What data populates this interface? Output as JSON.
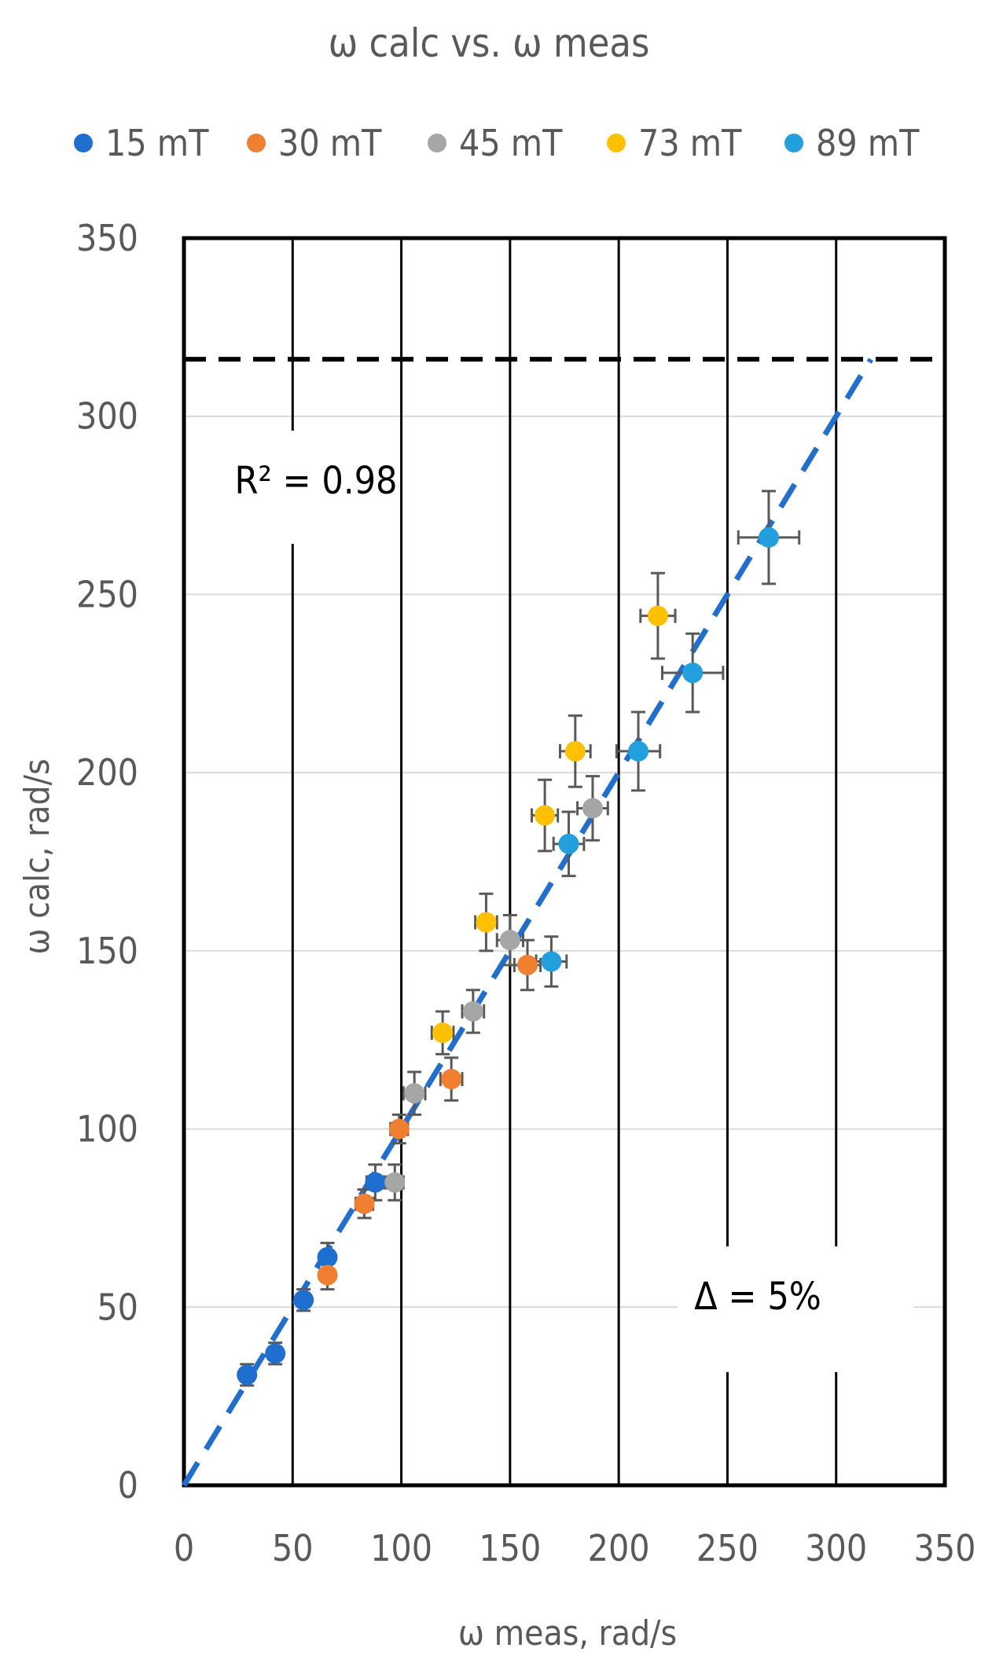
{
  "chart_data": {
    "type": "scatter",
    "title": "ω calc vs. ω meas",
    "xlabel": "ω meas, rad/s",
    "ylabel": "ω calc, rad/s",
    "xlim": [
      0,
      350
    ],
    "ylim": [
      0,
      350
    ],
    "xticks": [
      "0",
      "50",
      "100",
      "150",
      "200",
      "250",
      "300",
      "350"
    ],
    "yticks": [
      "0",
      "50",
      "100",
      "150",
      "200",
      "250",
      "300",
      "350"
    ],
    "legend_position": "top",
    "series": [
      {
        "name": "15 mT",
        "color": "#1f6fd1",
        "points": [
          [
            29,
            31,
            2,
            3
          ],
          [
            42,
            37,
            2,
            3
          ],
          [
            55,
            52,
            3,
            3
          ],
          [
            66,
            64,
            3,
            4
          ],
          [
            88,
            85,
            4,
            5
          ]
        ]
      },
      {
        "name": "30 mT",
        "color": "#f07f30",
        "points": [
          [
            66,
            59,
            3,
            4
          ],
          [
            83,
            79,
            4,
            4
          ],
          [
            99,
            100,
            4,
            4
          ],
          [
            123,
            114,
            5,
            6
          ],
          [
            158,
            146,
            6,
            7
          ]
        ]
      },
      {
        "name": "45 mT",
        "color": "#a6a6a6",
        "points": [
          [
            97,
            85,
            4,
            5
          ],
          [
            106,
            110,
            5,
            6
          ],
          [
            133,
            133,
            5,
            6
          ],
          [
            150,
            153,
            6,
            7
          ],
          [
            188,
            190,
            7,
            9
          ]
        ]
      },
      {
        "name": "73 mT",
        "color": "#ffc000",
        "points": [
          [
            119,
            127,
            5,
            6
          ],
          [
            139,
            158,
            5,
            8
          ],
          [
            166,
            188,
            6,
            10
          ],
          [
            180,
            206,
            7,
            10
          ],
          [
            218,
            244,
            8,
            12
          ]
        ]
      },
      {
        "name": "89 mT",
        "color": "#22a0de",
        "points": [
          [
            169,
            147,
            7,
            7
          ],
          [
            177,
            180,
            7,
            9
          ],
          [
            209,
            206,
            10,
            11
          ],
          [
            234,
            228,
            14,
            11
          ],
          [
            269,
            266,
            14,
            13
          ]
        ]
      }
    ],
    "trendline": {
      "color": "#1f6fd1",
      "from": [
        0,
        0
      ],
      "to": [
        316,
        316
      ]
    },
    "ceiling": {
      "value": 316,
      "color": "#000000"
    },
    "annotations": [
      "R² = 0.98",
      "Δ = 5%"
    ]
  }
}
